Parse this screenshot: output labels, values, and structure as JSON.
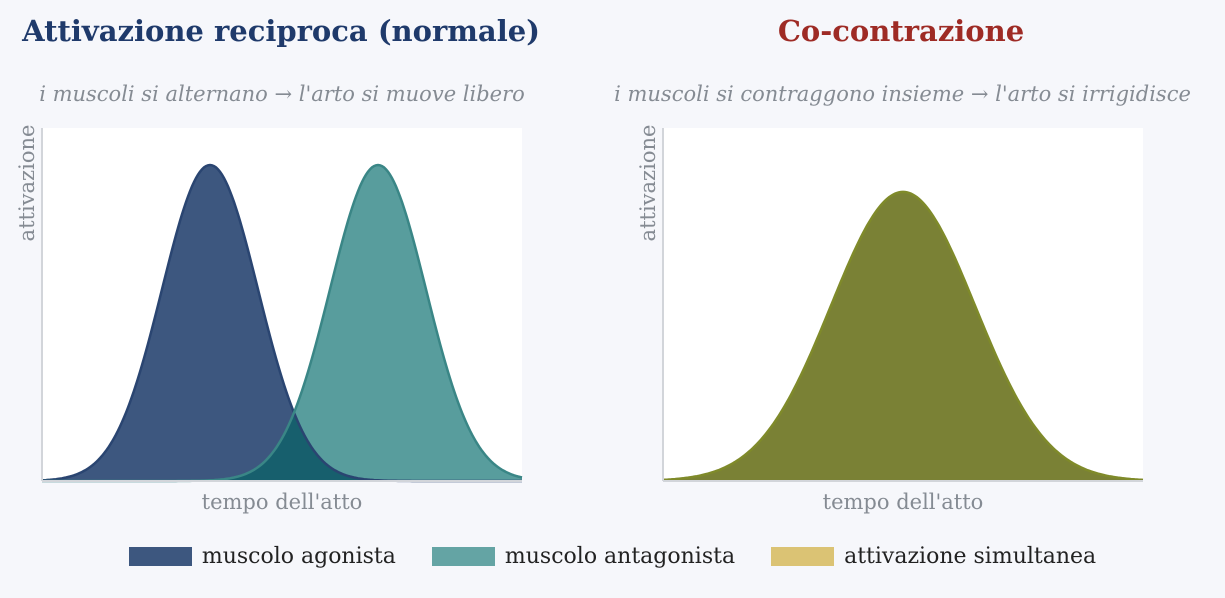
{
  "chart_data": [
    {
      "type": "area",
      "title": "Attivazione reciproca (normale)",
      "subtitle": "i muscoli si alternano → l'arto si muove libero",
      "title_color": "#1f3a6b",
      "xlabel": "tempo dell'atto",
      "ylabel": "attivazione",
      "xlim": [
        0,
        1
      ],
      "ylim": [
        0,
        1.05
      ],
      "grid": false,
      "series": [
        {
          "name": "muscolo agonista",
          "center": 0.35,
          "width": 0.1,
          "peak": 0.94,
          "fill": "#3d577f",
          "stroke": "#2a4571"
        },
        {
          "name": "muscolo antagonista",
          "center": 0.7,
          "width": 0.1,
          "peak": 0.94,
          "fill": "#589d9d",
          "stroke": "#3a8686"
        }
      ],
      "overlap_color": "#175f6d"
    },
    {
      "type": "area",
      "title": "Co-contrazione",
      "subtitle": "i muscoli si contraggono insieme → l'arto si irrigidisce",
      "title_color": "#9e2b25",
      "xlabel": "tempo dell'atto",
      "ylabel": "attivazione",
      "xlim": [
        0,
        1
      ],
      "ylim": [
        0,
        1.05
      ],
      "grid": false,
      "series": [
        {
          "name": "attivazione simultanea",
          "center": 0.5,
          "width": 0.15,
          "peak": 0.86,
          "fill": "#7a8135",
          "stroke": "#7f8a2a"
        }
      ]
    }
  ],
  "legend": {
    "items": [
      {
        "label": "muscolo agonista",
        "color": "#3d577f"
      },
      {
        "label": "muscolo antagonista",
        "color": "#64a4a4"
      },
      {
        "label": "attivazione simultanea",
        "color": "#dbc374"
      }
    ],
    "placement": "bottom-center"
  }
}
